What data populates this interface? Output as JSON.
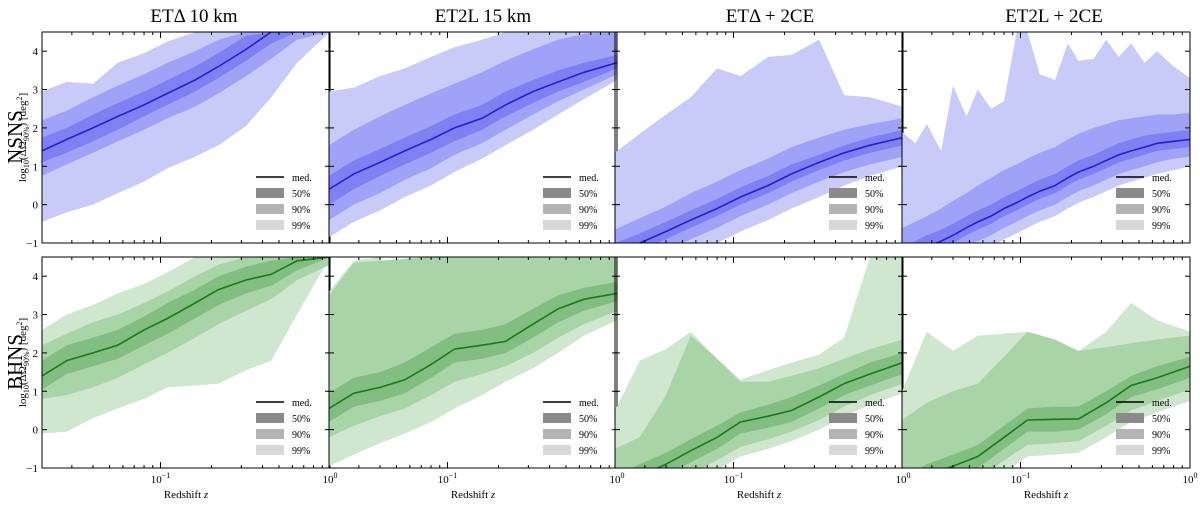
{
  "figure": {
    "row_titles": [
      "NSNS",
      "BHNS"
    ],
    "col_titles": [
      "ETΔ 10 km",
      "ET2L 15 km",
      "ETΔ + 2CE",
      "ET2L + 2CE"
    ],
    "ylabel_parts": {
      "main": "log",
      "sub1": "10",
      "mid": "(ΔΩ",
      "sub2": "90%",
      "unit_open": ") [deg",
      "sup": "2",
      "unit_close": "]"
    },
    "xlabel_parts": {
      "main": "Redshift ",
      "var": "z"
    },
    "y_ticks": [
      "4",
      "3",
      "2",
      "1",
      "0",
      "−1"
    ],
    "x_ticks": [
      {
        "base": "10",
        "exp": "−1"
      },
      {
        "base": "10",
        "exp": "0"
      }
    ],
    "legend": [
      "med.",
      "50%",
      "90%",
      "99%"
    ],
    "colors": {
      "nsns_99": "#c8caf7",
      "nsns_90": "#a0a2f8",
      "nsns_50": "#7f81f3",
      "nsns_line": "#2222cc",
      "bhns_99": "#cfe6cf",
      "bhns_90": "#a8d4a8",
      "bhns_50": "#82bd82",
      "bhns_line": "#1a7a1a",
      "legend_med": "#000000",
      "legend_50": "#8a8a8a",
      "legend_90": "#b4b4b4",
      "legend_99": "#d8d8d8"
    }
  },
  "chart_data": [
    {
      "type": "area",
      "row": "NSNS",
      "col": "ETΔ 10 km",
      "x": [
        0.02,
        0.028,
        0.04,
        0.056,
        0.08,
        0.11,
        0.16,
        0.22,
        0.32,
        0.45,
        0.64,
        1.0
      ],
      "xscale": "log",
      "xlim": [
        0.02,
        1.0
      ],
      "ylim": [
        -1,
        4.5
      ],
      "median": [
        1.4,
        1.7,
        2.0,
        2.3,
        2.6,
        2.9,
        3.25,
        3.6,
        4.05,
        4.5,
        4.5,
        4.5
      ],
      "band50": [
        [
          1.1,
          1.35,
          1.65,
          1.95,
          2.3,
          2.6,
          2.95,
          3.3,
          3.75,
          4.2,
          4.5,
          4.5
        ],
        [
          1.75,
          2.0,
          2.35,
          2.65,
          2.95,
          3.25,
          3.6,
          3.95,
          4.4,
          4.5,
          4.5,
          4.5
        ]
      ],
      "band90": [
        [
          0.75,
          1.05,
          1.35,
          1.65,
          1.95,
          2.25,
          2.55,
          2.9,
          3.35,
          3.8,
          4.3,
          4.5
        ],
        [
          2.2,
          2.45,
          2.8,
          3.1,
          3.4,
          3.7,
          4.0,
          4.3,
          4.5,
          4.5,
          4.5,
          4.5
        ]
      ],
      "band99": [
        [
          -0.45,
          -0.2,
          0.0,
          0.3,
          0.6,
          0.95,
          1.25,
          1.55,
          2.05,
          2.8,
          3.7,
          4.5
        ],
        [
          2.95,
          3.2,
          3.15,
          3.7,
          3.95,
          4.25,
          4.5,
          4.5,
          4.5,
          4.5,
          4.5,
          4.5
        ]
      ]
    },
    {
      "type": "area",
      "row": "NSNS",
      "col": "ET2L 15 km",
      "x": [
        0.02,
        0.028,
        0.04,
        0.056,
        0.08,
        0.11,
        0.16,
        0.22,
        0.32,
        0.45,
        0.64,
        1.0
      ],
      "xscale": "log",
      "xlim": [
        0.02,
        1.0
      ],
      "ylim": [
        -1,
        4.5
      ],
      "median": [
        0.4,
        0.8,
        1.1,
        1.4,
        1.7,
        2.0,
        2.25,
        2.6,
        2.95,
        3.2,
        3.45,
        3.7
      ],
      "band50": [
        [
          0.0,
          0.4,
          0.75,
          1.05,
          1.35,
          1.65,
          1.95,
          2.3,
          2.65,
          2.95,
          3.2,
          3.55
        ],
        [
          0.75,
          1.15,
          1.45,
          1.75,
          2.05,
          2.35,
          2.6,
          2.95,
          3.25,
          3.5,
          3.7,
          3.9
        ]
      ],
      "band90": [
        [
          -0.4,
          0.0,
          0.3,
          0.65,
          0.95,
          1.3,
          1.6,
          1.95,
          2.35,
          2.7,
          3.0,
          3.4
        ],
        [
          1.55,
          1.95,
          2.3,
          2.6,
          2.9,
          3.15,
          3.45,
          3.75,
          4.05,
          4.3,
          4.45,
          4.5
        ]
      ],
      "band99": [
        [
          -0.85,
          -0.45,
          -0.15,
          0.2,
          0.5,
          0.85,
          1.2,
          1.55,
          1.95,
          2.35,
          2.75,
          3.25
        ],
        [
          2.95,
          3.05,
          3.35,
          3.55,
          3.85,
          4.1,
          4.3,
          4.5,
          4.5,
          4.5,
          4.5,
          4.5
        ]
      ]
    },
    {
      "type": "area",
      "row": "NSNS",
      "col": "ETΔ + 2CE",
      "x": [
        0.02,
        0.028,
        0.04,
        0.056,
        0.08,
        0.11,
        0.16,
        0.22,
        0.32,
        0.45,
        0.64,
        1.0
      ],
      "xscale": "log",
      "xlim": [
        0.02,
        1.0
      ],
      "ylim": [
        -1,
        4.5
      ],
      "median": [
        -1.3,
        -1.0,
        -0.7,
        -0.4,
        -0.1,
        0.2,
        0.5,
        0.8,
        1.1,
        1.35,
        1.55,
        1.75
      ],
      "band50": [
        [
          -1.5,
          -1.2,
          -0.9,
          -0.6,
          -0.3,
          0.0,
          0.3,
          0.6,
          0.9,
          1.15,
          1.35,
          1.55
        ],
        [
          -1.0,
          -0.75,
          -0.45,
          -0.15,
          0.15,
          0.45,
          0.75,
          1.05,
          1.3,
          1.55,
          1.75,
          1.95
        ]
      ],
      "band90": [
        [
          -1.8,
          -1.5,
          -1.2,
          -0.9,
          -0.6,
          -0.3,
          0.0,
          0.3,
          0.6,
          0.85,
          1.05,
          1.25
        ],
        [
          -0.65,
          -0.35,
          -0.05,
          0.3,
          0.6,
          0.9,
          1.2,
          1.5,
          1.75,
          1.95,
          2.1,
          2.25
        ]
      ],
      "band99": [
        [
          -2.2,
          -1.9,
          -1.6,
          -1.3,
          -1.0,
          -0.7,
          -0.4,
          -0.1,
          0.2,
          0.5,
          0.75,
          1.0
        ],
        [
          1.35,
          1.85,
          2.35,
          2.8,
          3.55,
          3.35,
          3.85,
          3.9,
          4.3,
          2.85,
          2.8,
          2.55
        ]
      ]
    },
    {
      "type": "area",
      "row": "NSNS",
      "col": "ET2L + 2CE",
      "x": [
        0.02,
        0.024,
        0.028,
        0.034,
        0.04,
        0.048,
        0.056,
        0.067,
        0.08,
        0.095,
        0.11,
        0.13,
        0.16,
        0.19,
        0.22,
        0.27,
        0.32,
        0.38,
        0.45,
        0.54,
        0.64,
        0.8,
        1.0
      ],
      "xscale": "log",
      "xlim": [
        0.02,
        1.0
      ],
      "ylim": [
        -1,
        4.5
      ],
      "median": [
        -1.4,
        -1.25,
        -1.1,
        -0.95,
        -0.8,
        -0.6,
        -0.45,
        -0.3,
        -0.1,
        0.05,
        0.2,
        0.35,
        0.5,
        0.7,
        0.85,
        1.0,
        1.15,
        1.3,
        1.4,
        1.5,
        1.6,
        1.65,
        1.7
      ],
      "band50": [
        [
          -1.6,
          -1.45,
          -1.3,
          -1.15,
          -1.0,
          -0.8,
          -0.65,
          -0.5,
          -0.3,
          -0.15,
          0.0,
          0.15,
          0.3,
          0.5,
          0.65,
          0.8,
          0.95,
          1.1,
          1.2,
          1.3,
          1.4,
          1.45,
          1.5
        ],
        [
          -1.1,
          -0.95,
          -0.8,
          -0.65,
          -0.5,
          -0.3,
          -0.15,
          0.0,
          0.2,
          0.35,
          0.5,
          0.65,
          0.8,
          1.0,
          1.15,
          1.3,
          1.45,
          1.6,
          1.7,
          1.8,
          1.85,
          1.9,
          1.95
        ]
      ],
      "band90": [
        [
          -1.9,
          -1.75,
          -1.6,
          -1.45,
          -1.3,
          -1.1,
          -0.95,
          -0.8,
          -0.6,
          -0.45,
          -0.3,
          -0.15,
          0.0,
          0.2,
          0.35,
          0.5,
          0.65,
          0.8,
          0.9,
          1.0,
          1.1,
          1.2,
          1.25
        ],
        [
          -0.6,
          -0.45,
          -0.3,
          -0.1,
          0.1,
          0.3,
          0.5,
          0.7,
          0.9,
          1.05,
          1.2,
          1.35,
          1.5,
          1.7,
          1.85,
          2.0,
          2.1,
          2.2,
          2.25,
          2.3,
          2.35,
          2.35,
          2.4
        ]
      ],
      "band99": [
        [
          -2.2,
          -2.05,
          -1.9,
          -1.75,
          -1.6,
          -1.4,
          -1.25,
          -1.1,
          -0.9,
          -0.75,
          -0.6,
          -0.45,
          -0.3,
          -0.1,
          0.05,
          0.2,
          0.35,
          0.5,
          0.6,
          0.7,
          0.8,
          0.9,
          1.0
        ],
        [
          1.9,
          1.6,
          2.1,
          1.4,
          3.1,
          2.3,
          3.0,
          2.5,
          2.7,
          4.5,
          4.5,
          3.4,
          3.25,
          4.2,
          3.75,
          3.8,
          4.3,
          3.85,
          4.2,
          3.7,
          4.0,
          3.6,
          3.3
        ]
      ]
    },
    {
      "type": "area",
      "row": "BHNS",
      "col": "ETΔ 10 km",
      "x": [
        0.02,
        0.028,
        0.04,
        0.056,
        0.08,
        0.11,
        0.16,
        0.22,
        0.32,
        0.45,
        0.64,
        1.0
      ],
      "xscale": "log",
      "xlim": [
        0.02,
        1.0
      ],
      "ylim": [
        -1,
        4.5
      ],
      "median": [
        1.4,
        1.8,
        2.0,
        2.2,
        2.6,
        2.9,
        3.3,
        3.65,
        3.9,
        4.05,
        4.4,
        4.5
      ],
      "band50": [
        [
          1.05,
          1.45,
          1.65,
          1.85,
          2.2,
          2.5,
          2.9,
          3.25,
          3.55,
          3.75,
          4.15,
          4.5
        ],
        [
          1.8,
          2.2,
          2.4,
          2.6,
          2.95,
          3.3,
          3.65,
          4.0,
          4.25,
          4.4,
          4.5,
          4.5
        ]
      ],
      "band90": [
        [
          0.8,
          0.9,
          1.1,
          1.35,
          1.7,
          2.0,
          2.4,
          2.75,
          3.1,
          3.4,
          3.9,
          4.3
        ],
        [
          2.2,
          2.5,
          2.8,
          3.0,
          3.3,
          3.6,
          4.0,
          4.3,
          4.5,
          4.5,
          4.5,
          4.5
        ]
      ],
      "band99": [
        [
          -0.1,
          -0.05,
          0.3,
          0.55,
          0.8,
          1.1,
          1.15,
          1.2,
          1.55,
          1.8,
          3.0,
          4.5
        ],
        [
          2.6,
          3.0,
          3.25,
          3.55,
          3.8,
          4.1,
          4.5,
          4.5,
          4.5,
          4.5,
          4.5,
          4.5
        ]
      ]
    },
    {
      "type": "area",
      "row": "BHNS",
      "col": "ET2L 15 km",
      "x": [
        0.02,
        0.028,
        0.04,
        0.056,
        0.08,
        0.11,
        0.16,
        0.22,
        0.32,
        0.45,
        0.64,
        1.0
      ],
      "xscale": "log",
      "xlim": [
        0.02,
        1.0
      ],
      "ylim": [
        -1,
        4.5
      ],
      "median": [
        0.55,
        0.95,
        1.1,
        1.3,
        1.7,
        2.1,
        2.2,
        2.3,
        2.75,
        3.15,
        3.4,
        3.55
      ],
      "band50": [
        [
          0.2,
          0.6,
          0.75,
          0.95,
          1.35,
          1.75,
          1.85,
          2.0,
          2.4,
          2.8,
          3.1,
          3.35
        ],
        [
          0.95,
          1.35,
          1.5,
          1.75,
          2.15,
          2.5,
          2.6,
          2.75,
          3.15,
          3.5,
          3.7,
          3.85
        ]
      ],
      "band90": [
        [
          -0.2,
          0.1,
          0.35,
          0.55,
          0.9,
          1.25,
          1.45,
          1.65,
          2.0,
          2.4,
          2.75,
          3.1
        ],
        [
          3.5,
          4.35,
          4.4,
          4.45,
          4.5,
          4.5,
          4.5,
          4.5,
          4.5,
          4.5,
          4.5,
          4.5
        ]
      ],
      "band99": [
        [
          -0.95,
          -0.65,
          -0.35,
          -0.1,
          0.2,
          0.55,
          0.9,
          1.25,
          1.6,
          2.0,
          2.45,
          2.85
        ],
        [
          3.6,
          4.4,
          4.5,
          3.65,
          4.5,
          4.5,
          4.5,
          4.5,
          4.5,
          4.5,
          4.5,
          4.5
        ]
      ]
    },
    {
      "type": "area",
      "row": "BHNS",
      "col": "ETΔ + 2CE",
      "x": [
        0.02,
        0.028,
        0.04,
        0.056,
        0.08,
        0.11,
        0.16,
        0.22,
        0.32,
        0.45,
        0.64,
        1.0
      ],
      "xscale": "log",
      "xlim": [
        0.02,
        1.0
      ],
      "ylim": [
        -1,
        4.5
      ],
      "median": [
        -1.5,
        -1.2,
        -0.9,
        -0.55,
        -0.2,
        0.2,
        0.35,
        0.5,
        0.85,
        1.2,
        1.45,
        1.75
      ],
      "band50": [
        [
          -1.8,
          -1.5,
          -1.2,
          -0.85,
          -0.5,
          -0.1,
          0.05,
          0.2,
          0.55,
          0.9,
          1.15,
          1.45
        ],
        [
          -1.2,
          -0.9,
          -0.6,
          -0.25,
          0.1,
          0.45,
          0.65,
          0.85,
          1.15,
          1.45,
          1.75,
          2.0
        ]
      ],
      "band90": [
        [
          -2.1,
          -1.8,
          -1.5,
          -1.15,
          -0.8,
          -0.45,
          -0.25,
          -0.05,
          0.25,
          0.6,
          0.9,
          1.2
        ],
        [
          -0.5,
          -0.2,
          0.9,
          2.45,
          1.85,
          1.25,
          1.25,
          1.4,
          1.6,
          1.85,
          2.1,
          2.35
        ]
      ],
      "band99": [
        [
          -2.3,
          -2.0,
          -1.7,
          -1.4,
          -1.05,
          -0.7,
          -0.5,
          -0.3,
          0.0,
          0.35,
          0.65,
          0.95
        ],
        [
          0.5,
          1.8,
          2.1,
          2.55,
          1.85,
          1.3,
          1.55,
          1.75,
          1.95,
          2.4,
          4.5,
          4.5
        ]
      ]
    },
    {
      "type": "area",
      "row": "BHNS",
      "col": "ET2L + 2CE",
      "x": [
        0.02,
        0.028,
        0.04,
        0.056,
        0.08,
        0.11,
        0.16,
        0.22,
        0.32,
        0.45,
        0.64,
        1.0
      ],
      "xscale": "log",
      "xlim": [
        0.02,
        1.0
      ],
      "ylim": [
        -1,
        4.5
      ],
      "median": [
        -1.6,
        -1.2,
        -0.95,
        -0.7,
        -0.2,
        0.25,
        0.27,
        0.28,
        0.7,
        1.15,
        1.35,
        1.65
      ],
      "band50": [
        [
          -1.9,
          -1.5,
          -1.25,
          -1.0,
          -0.5,
          -0.05,
          -0.05,
          0.0,
          0.4,
          0.85,
          1.05,
          1.35
        ],
        [
          -1.3,
          -0.9,
          -0.65,
          -0.4,
          0.1,
          0.55,
          0.6,
          0.6,
          1.0,
          1.4,
          1.65,
          1.9
        ]
      ],
      "band90": [
        [
          -2.2,
          -1.8,
          -1.55,
          -1.3,
          -0.8,
          -0.4,
          -0.35,
          -0.3,
          0.1,
          0.5,
          0.75,
          1.05
        ],
        [
          0.25,
          0.7,
          1.0,
          1.2,
          1.9,
          2.55,
          2.35,
          2.05,
          2.15,
          2.25,
          2.35,
          2.45
        ]
      ],
      "band99": [
        [
          -2.5,
          -2.1,
          -1.85,
          -1.6,
          -1.1,
          -0.7,
          -0.65,
          -0.6,
          -0.2,
          0.2,
          0.45,
          0.75
        ],
        [
          1.0,
          2.55,
          2.05,
          2.45,
          2.5,
          2.55,
          2.2,
          2.05,
          2.55,
          3.3,
          2.85,
          2.55
        ]
      ]
    }
  ]
}
